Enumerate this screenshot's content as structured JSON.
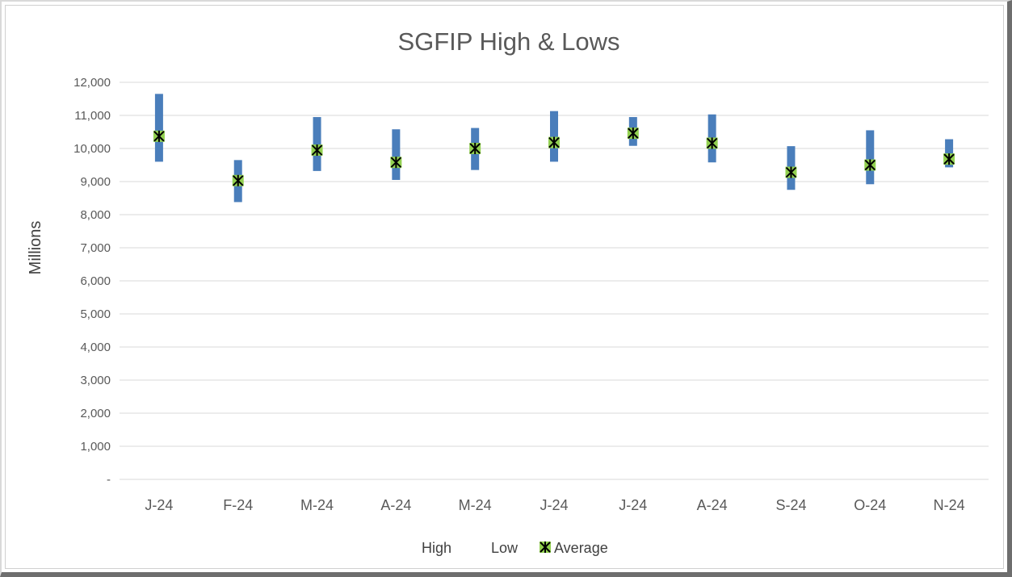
{
  "chart_data": {
    "type": "stock",
    "title": "SGFIP High & Lows",
    "ylabel": "Millions",
    "xlabel": "",
    "ylim": [
      0,
      12000
    ],
    "ytick_step": 1000,
    "ytick_labels": [
      "-",
      "1,000",
      "2,000",
      "3,000",
      "4,000",
      "5,000",
      "6,000",
      "7,000",
      "8,000",
      "9,000",
      "10,000",
      "11,000",
      "12,000"
    ],
    "grid": true,
    "legend_position": "bottom",
    "categories": [
      "J-24",
      "F-24",
      "M-24",
      "A-24",
      "M-24",
      "J-24",
      "J-24",
      "A-24",
      "S-24",
      "O-24",
      "N-24"
    ],
    "series": [
      {
        "name": "High",
        "values": [
          11650,
          9650,
          10950,
          10580,
          10620,
          11130,
          10950,
          11030,
          10070,
          10550,
          10280
        ]
      },
      {
        "name": "Low",
        "values": [
          9600,
          8380,
          9320,
          9050,
          9350,
          9600,
          10080,
          9580,
          8750,
          8920,
          9430
        ]
      },
      {
        "name": "Average",
        "values": [
          10370,
          9030,
          9950,
          9580,
          10000,
          10180,
          10460,
          10160,
          9280,
          9500,
          9680
        ]
      }
    ],
    "colors": {
      "range_bar": "#4a7ebb",
      "average_marker_fill": "#92d050",
      "average_marker_stroke": "#000000",
      "grid": "#d9d9d9"
    }
  }
}
